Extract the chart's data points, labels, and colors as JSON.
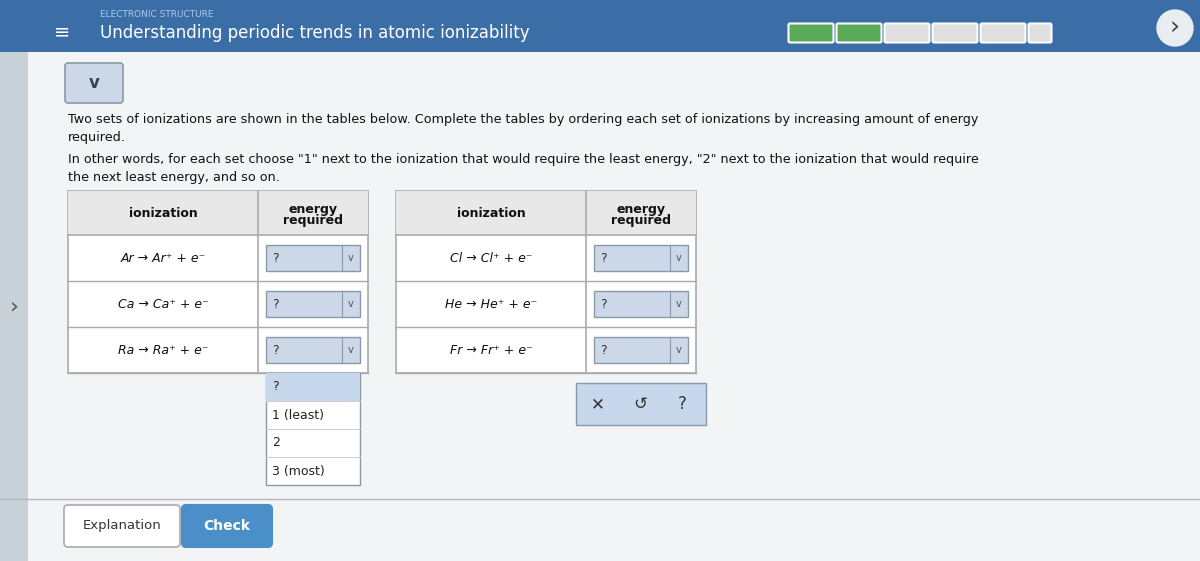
{
  "title": "Understanding periodic trends in atomic ionizability",
  "subtitle_label": "ELECTRONIC STRUCTURE",
  "subtitle_line1": "Two sets of ionizations are shown in the tables below. Complete the tables by ordering each set of ionizations by increasing amount of energy",
  "subtitle_line2": "required.",
  "instruction_line1": "In other words, for each set choose \"1\" next to the ionization that would require the least energy, \"2\" next to the ionization that would require",
  "instruction_line2": "the next least energy, and so on.",
  "table1_rows": [
    "Ar → Ar⁺ + e⁻",
    "Ca → Ca⁺ + e⁻",
    "Ra → Ra⁺ + e⁻"
  ],
  "table2_rows": [
    "Cl → Cl⁺ + e⁻",
    "He → He⁺ + e⁻",
    "Fr → Fr⁺ + e⁻"
  ],
  "dropdown_items": [
    "?",
    "1 (least)",
    "2",
    "3 (most)"
  ],
  "bg_color": "#dce3ea",
  "main_bg": "#f2f4f6",
  "title_bar_bg": "#3b6ea6",
  "title_bar_top": "#4a7fc1",
  "title_color": "#ffffff",
  "table_header_bg": "#e8e8e8",
  "table_border": "#aaaaaa",
  "dropdown_bg": "#ccd8e8",
  "dropdown_open_bg": "#c8d8ec",
  "button_check_bg": "#4a8fc8",
  "button_check_color": "#ffffff",
  "button_expl_bg": "#e8e8e8",
  "popup_bg": "#c8d8ec",
  "progress_green": "#5aaa5a",
  "progress_empty": "#e0e0e0",
  "nav_bg": "#2a4a6a"
}
